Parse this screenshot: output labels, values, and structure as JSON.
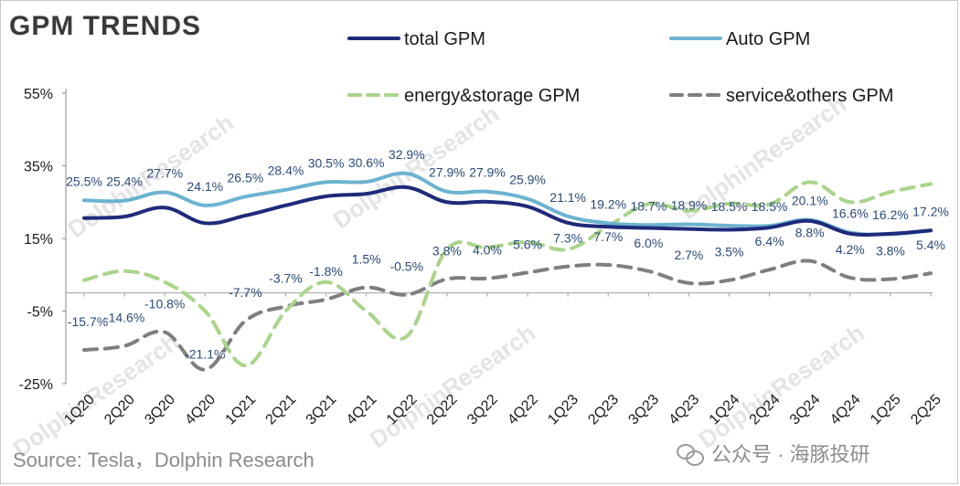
{
  "title": "GPM TRENDS",
  "source": "Source: Tesla，Dolphin Research",
  "watermark_text": "DolphinResearch",
  "watermark_brand": "公众号 · 海豚投研",
  "chart_data": {
    "type": "line",
    "title": "GPM TRENDS",
    "categories": [
      "1Q20",
      "2Q20",
      "3Q20",
      "4Q20",
      "1Q21",
      "2Q21",
      "3Q21",
      "4Q21",
      "1Q22",
      "2Q22",
      "3Q22",
      "4Q22",
      "1Q23",
      "2Q23",
      "3Q23",
      "4Q23",
      "1Q24",
      "2Q24",
      "3Q24",
      "4Q24",
      "1Q25",
      "2Q25"
    ],
    "y_ticks": [
      "55%",
      "35%",
      "15%",
      "-5%",
      "-25%"
    ],
    "ylim": [
      -25,
      55
    ],
    "grid": false,
    "legend_position": "top",
    "series": [
      {
        "name": "total GPM",
        "color": "#1f2a7a",
        "style": "solid",
        "values": [
          20.6,
          21.0,
          23.5,
          19.2,
          21.3,
          24.1,
          26.6,
          27.3,
          29.1,
          25.0,
          25.1,
          23.8,
          19.3,
          18.2,
          17.9,
          17.6,
          17.4,
          18.0,
          19.8,
          16.3,
          16.3,
          17.2
        ],
        "labels": []
      },
      {
        "name": "Auto GPM",
        "color": "#6cb3cf",
        "style": "solid",
        "values": [
          25.5,
          25.4,
          27.7,
          24.1,
          26.5,
          28.4,
          30.5,
          30.6,
          32.9,
          27.9,
          27.9,
          25.9,
          21.1,
          19.2,
          18.7,
          18.9,
          18.5,
          18.5,
          20.1,
          16.6,
          16.2,
          17.2
        ],
        "labels": [
          "25.5%",
          "25.4%",
          "27.7%",
          "24.1%",
          "26.5%",
          "28.4%",
          "30.5%",
          "30.6%",
          "32.9%",
          "27.9%",
          "27.9%",
          "25.9%",
          "21.1%",
          "19.2%",
          "18.7%",
          "18.9%",
          "18.5%",
          "18.5%",
          "20.1%",
          "16.6%",
          "16.2%",
          "17.2%"
        ]
      },
      {
        "name": "energy&storage GPM",
        "color": "#a9d48a",
        "style": "dashed",
        "values": [
          3.5,
          6.0,
          3.0,
          -5.0,
          -20.0,
          -5.0,
          3.0,
          -5.0,
          -12.0,
          12.0,
          12.5,
          14.0,
          12.0,
          18.4,
          24.5,
          22.6,
          24.6,
          24.4,
          30.5,
          25.0,
          27.8,
          30.0
        ],
        "labels": []
      },
      {
        "name": "service&others GPM",
        "color": "#7f7f7f",
        "style": "dashed",
        "values": [
          -15.7,
          -14.6,
          -10.8,
          -21.1,
          -7.7,
          -3.7,
          -1.8,
          1.5,
          -0.5,
          3.8,
          4.0,
          5.6,
          7.3,
          7.7,
          6.0,
          2.7,
          3.5,
          6.4,
          8.8,
          4.2,
          3.8,
          5.4
        ],
        "labels": [
          "-15.7%",
          "-14.6%",
          "-10.8%",
          "-21.1%",
          "-7.7%",
          "-3.7%",
          "-1.8%",
          "1.5%",
          "-0.5%",
          "3.8%",
          "4.0%",
          "5.6%",
          "7.3%",
          "7.7%",
          "6.0%",
          "2.7%",
          "3.5%",
          "6.4%",
          "8.8%",
          "4.2%",
          "3.8%",
          "5.4%"
        ]
      }
    ]
  }
}
